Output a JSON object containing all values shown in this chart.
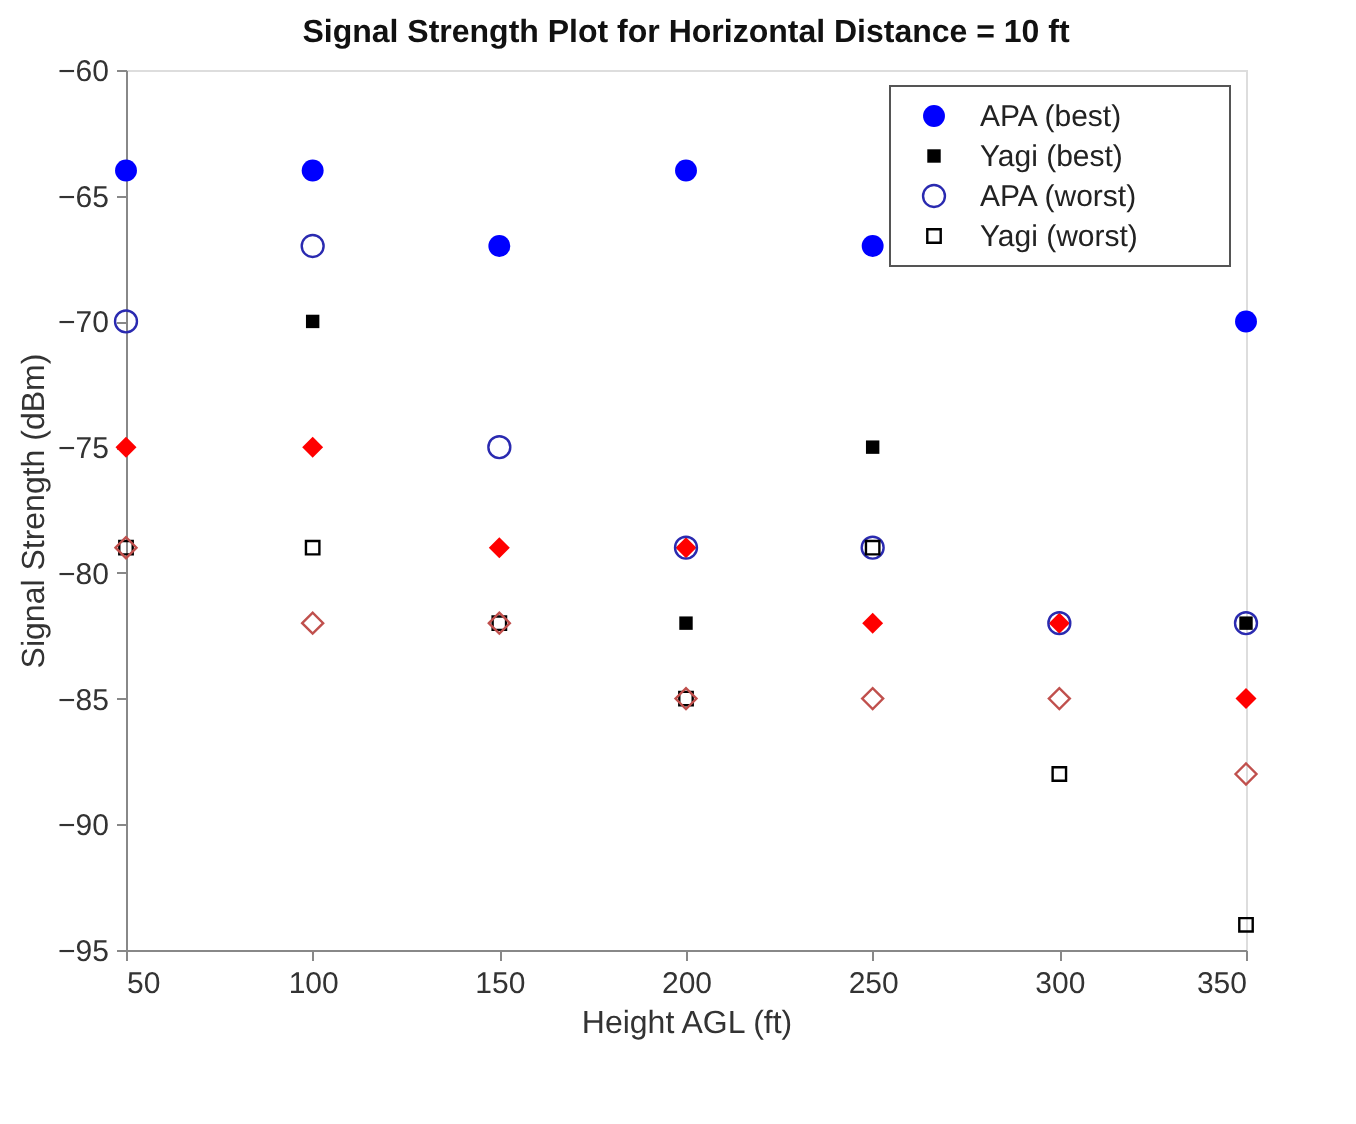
{
  "chart_data": {
    "type": "scatter",
    "title": "Signal Strength Plot for Horizontal Distance = 10 ft",
    "xlabel": "Height AGL (ft)",
    "ylabel": "Signal Strength (dBm)",
    "x": [
      50,
      100,
      150,
      200,
      250,
      300,
      350
    ],
    "xlim": [
      50,
      350
    ],
    "xticks": [
      50,
      100,
      150,
      200,
      250,
      300,
      350
    ],
    "ylim": [
      -95,
      -60
    ],
    "yticks": [
      -95,
      -90,
      -85,
      -80,
      -75,
      -70,
      -65,
      -60
    ],
    "grid": false,
    "legend": "top right",
    "series": [
      {
        "name": "APA (best)",
        "color": "#0000ff",
        "marker": "circle",
        "values": [
          -64,
          -64,
          -67,
          -64,
          -67,
          null,
          -70
        ]
      },
      {
        "name": "Yagi (best)",
        "color": "#000000",
        "marker": "square",
        "values": [
          null,
          -70,
          null,
          -82,
          -75,
          null,
          -82
        ]
      },
      {
        "color": "#ff0000",
        "marker": "diamond",
        "values": [
          -75,
          -75,
          -79,
          -79,
          -82,
          -82,
          -85
        ]
      },
      {
        "name": "APA (worst)",
        "color": "#2a2ab0",
        "marker": "circle",
        "values": [
          -70,
          -67,
          -75,
          -79,
          -79,
          -82,
          -82
        ]
      },
      {
        "name": "Yagi (worst)",
        "color": "#000000",
        "marker": "square",
        "values": [
          -79,
          -79,
          -82,
          -85,
          -79,
          -88,
          -94
        ]
      },
      {
        "color": "#c0504d",
        "marker": "diamond",
        "values": [
          -79,
          -82,
          -82,
          -85,
          -85,
          -85,
          -88
        ]
      }
    ]
  }
}
